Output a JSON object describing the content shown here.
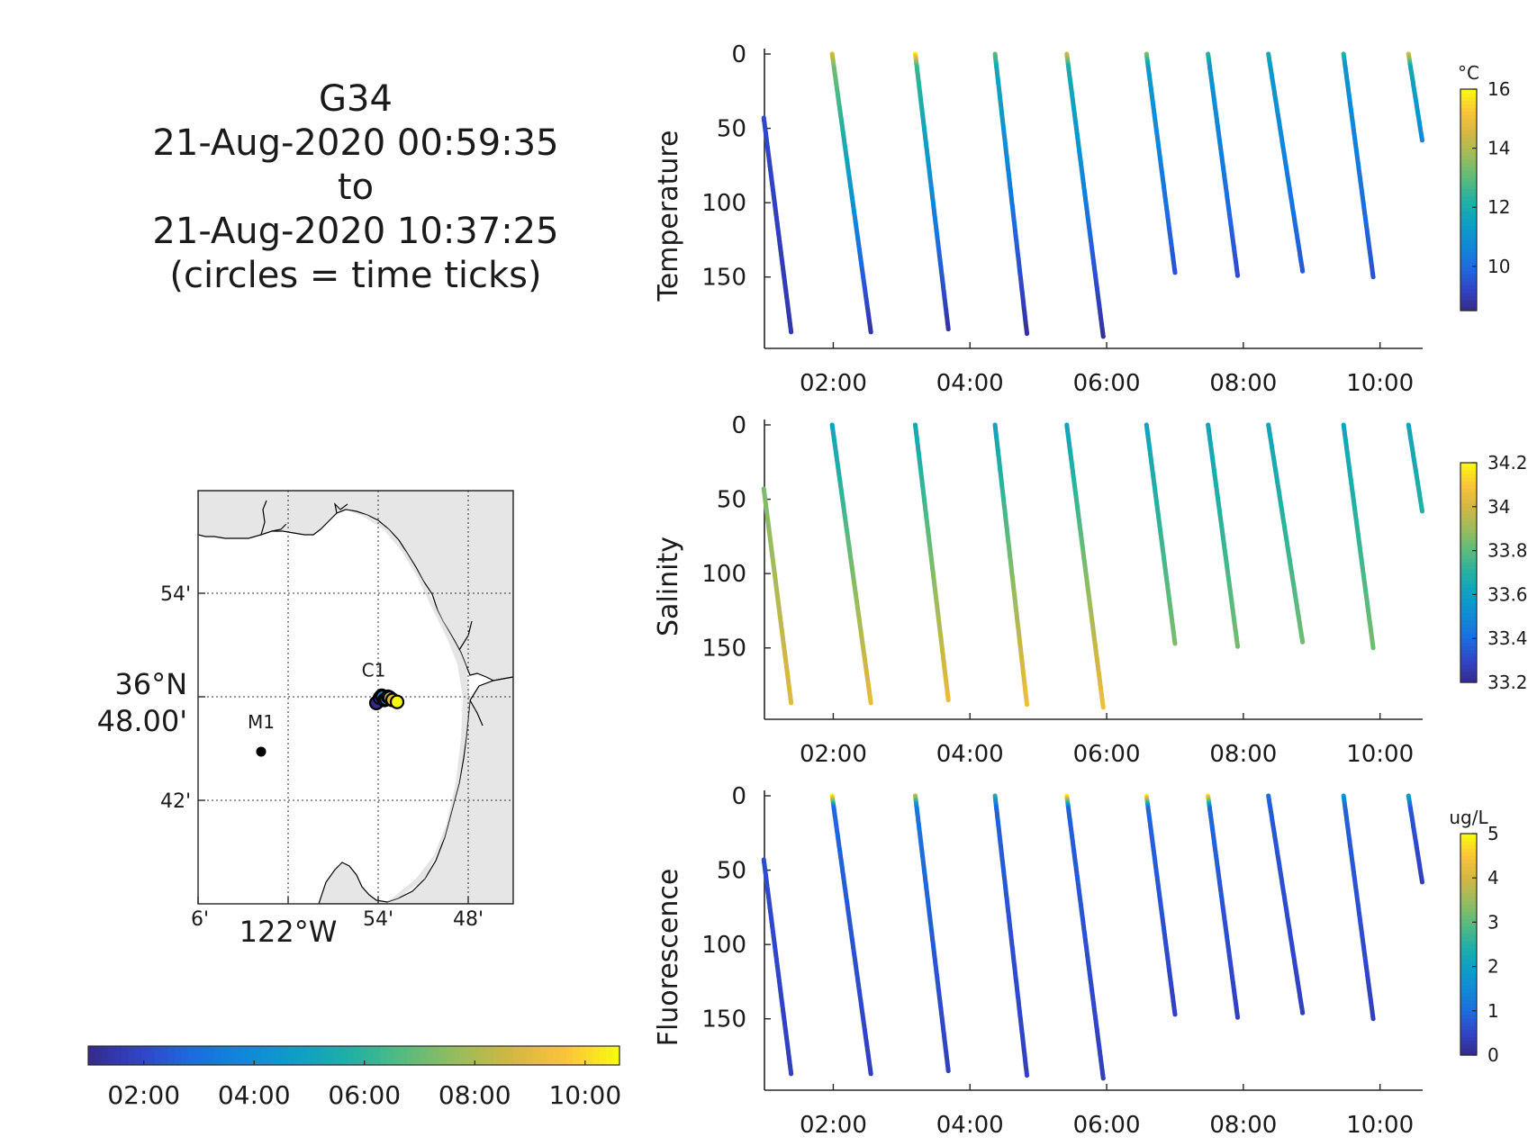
{
  "title_lines": [
    "G34",
    "21-Aug-2020 00:59:35",
    "to",
    "21-Aug-2020 10:37:25",
    "(circles = time ticks)"
  ],
  "colors": {
    "parula": [
      "#352a87",
      "#3145c9",
      "#1d6ce0",
      "#0f8ad8",
      "#0ea0c4",
      "#22b1a2",
      "#5cbb7c",
      "#9bbc5c",
      "#d3b742",
      "#fbc33a",
      "#f9fb0e"
    ],
    "land": "#e6e6e6",
    "axis": "#262626"
  },
  "chart_data": [
    {
      "type": "scatter",
      "panel": "temperature",
      "ylabel": "Temperature",
      "ylim": [
        0,
        198
      ],
      "y_reversed": true,
      "y_ticks": [
        0,
        50,
        100,
        150
      ],
      "xlim": [
        "00:59:35",
        "10:37:25"
      ],
      "x_ticks": [
        "02:00",
        "04:00",
        "06:00",
        "08:00",
        "10:00"
      ],
      "colorbar": {
        "unit": "°C",
        "range": [
          8.5,
          16
        ],
        "ticks": [
          10,
          12,
          14,
          16
        ]
      },
      "profiles": [
        {
          "t_start": "00:59",
          "t_end": "01:23",
          "z_start": 43,
          "z_end": 187,
          "v_start": 9.3,
          "v_end": 8.9
        },
        {
          "t_start": "01:59",
          "t_end": "02:33",
          "z_start": 0,
          "z_end": 187,
          "v_start": 13.5,
          "v_end": 8.8,
          "surface_v": 14.5
        },
        {
          "t_start": "03:12",
          "t_end": "03:41",
          "z_start": 0,
          "z_end": 185,
          "v_start": 12.8,
          "v_end": 8.8,
          "surface_v": 15.8
        },
        {
          "t_start": "04:22",
          "t_end": "04:50",
          "z_start": 0,
          "z_end": 188,
          "v_start": 12.0,
          "v_end": 8.7,
          "surface_v": 13.0
        },
        {
          "t_start": "05:25",
          "t_end": "05:57",
          "z_start": 0,
          "z_end": 190,
          "v_start": 12.2,
          "v_end": 8.7,
          "surface_v": 14.6
        },
        {
          "t_start": "06:35",
          "t_end": "07:00",
          "z_start": 0,
          "z_end": 147,
          "v_start": 11.5,
          "v_end": 9.5,
          "surface_v": 13.5
        },
        {
          "t_start": "07:29",
          "t_end": "07:55",
          "z_start": 0,
          "z_end": 149,
          "v_start": 11.3,
          "v_end": 9.4,
          "surface_v": 12.5
        },
        {
          "t_start": "08:22",
          "t_end": "08:52",
          "z_start": 0,
          "z_end": 146,
          "v_start": 11.4,
          "v_end": 9.6,
          "surface_v": 12.0
        },
        {
          "t_start": "09:28",
          "t_end": "09:54",
          "z_start": 0,
          "z_end": 150,
          "v_start": 11.2,
          "v_end": 9.5,
          "surface_v": 12.4
        },
        {
          "t_start": "10:25",
          "t_end": "10:37",
          "z_start": 0,
          "z_end": 58,
          "v_start": 12.0,
          "v_end": 10.8,
          "surface_v": 14.6
        }
      ]
    },
    {
      "type": "scatter",
      "panel": "salinity",
      "ylabel": "Salinity",
      "ylim": [
        0,
        198
      ],
      "y_reversed": true,
      "y_ticks": [
        0,
        50,
        100,
        150
      ],
      "xlim": [
        "00:59:35",
        "10:37:25"
      ],
      "x_ticks": [
        "02:00",
        "04:00",
        "06:00",
        "08:00",
        "10:00"
      ],
      "colorbar": {
        "unit": "",
        "range": [
          33.2,
          34.2
        ],
        "ticks": [
          "33.2",
          "33.4",
          "33.6",
          "33.8",
          "34",
          "34.2"
        ]
      },
      "profiles": [
        {
          "t_start": "00:59",
          "t_end": "01:23",
          "z_start": 43,
          "z_end": 187,
          "v_start": 33.85,
          "v_end": 34.03
        },
        {
          "t_start": "01:59",
          "t_end": "02:33",
          "z_start": 0,
          "z_end": 187,
          "v_start": 33.62,
          "v_end": 34.05
        },
        {
          "t_start": "03:12",
          "t_end": "03:41",
          "z_start": 0,
          "z_end": 185,
          "v_start": 33.64,
          "v_end": 34.05
        },
        {
          "t_start": "04:22",
          "t_end": "04:50",
          "z_start": 0,
          "z_end": 188,
          "v_start": 33.62,
          "v_end": 34.07
        },
        {
          "t_start": "05:25",
          "t_end": "05:57",
          "z_start": 0,
          "z_end": 190,
          "v_start": 33.62,
          "v_end": 34.07
        },
        {
          "t_start": "06:35",
          "t_end": "07:00",
          "z_start": 0,
          "z_end": 147,
          "v_start": 33.62,
          "v_end": 33.85
        },
        {
          "t_start": "07:29",
          "t_end": "07:55",
          "z_start": 0,
          "z_end": 149,
          "v_start": 33.62,
          "v_end": 33.84
        },
        {
          "t_start": "08:22",
          "t_end": "08:52",
          "z_start": 0,
          "z_end": 146,
          "v_start": 33.62,
          "v_end": 33.83
        },
        {
          "t_start": "09:28",
          "t_end": "09:54",
          "z_start": 0,
          "z_end": 150,
          "v_start": 33.62,
          "v_end": 33.84
        },
        {
          "t_start": "10:25",
          "t_end": "10:37",
          "z_start": 0,
          "z_end": 58,
          "v_start": 33.62,
          "v_end": 33.7
        }
      ]
    },
    {
      "type": "scatter",
      "panel": "fluorescence",
      "ylabel": "Fluorescence",
      "ylim": [
        0,
        198
      ],
      "y_reversed": true,
      "y_ticks": [
        0,
        50,
        100,
        150
      ],
      "xlim": [
        "00:59:35",
        "10:37:25"
      ],
      "x_ticks": [
        "02:00",
        "04:00",
        "06:00",
        "08:00",
        "10:00"
      ],
      "colorbar": {
        "unit": "ug/L",
        "range": [
          0,
          5
        ],
        "ticks": [
          0,
          1,
          2,
          3,
          4,
          5
        ]
      },
      "profiles": [
        {
          "t_start": "00:59",
          "t_end": "01:23",
          "z_start": 43,
          "z_end": 187,
          "v_start": 0.6,
          "v_end": 0.4
        },
        {
          "t_start": "01:59",
          "t_end": "02:33",
          "z_start": 0,
          "z_end": 187,
          "v_start": 1.0,
          "v_end": 0.4,
          "surface_v": 5.0
        },
        {
          "t_start": "03:12",
          "t_end": "03:41",
          "z_start": 0,
          "z_end": 185,
          "v_start": 1.2,
          "v_end": 0.4,
          "surface_v": 3.8
        },
        {
          "t_start": "04:22",
          "t_end": "04:50",
          "z_start": 0,
          "z_end": 188,
          "v_start": 0.9,
          "v_end": 0.4,
          "surface_v": 2.5
        },
        {
          "t_start": "05:25",
          "t_end": "05:57",
          "z_start": 0,
          "z_end": 190,
          "v_start": 0.9,
          "v_end": 0.4,
          "surface_v": 5.0
        },
        {
          "t_start": "06:35",
          "t_end": "07:00",
          "z_start": 0,
          "z_end": 147,
          "v_start": 1.0,
          "v_end": 0.4,
          "surface_v": 5.0
        },
        {
          "t_start": "07:29",
          "t_end": "07:55",
          "z_start": 0,
          "z_end": 149,
          "v_start": 1.0,
          "v_end": 0.4,
          "surface_v": 4.8
        },
        {
          "t_start": "08:22",
          "t_end": "08:52",
          "z_start": 0,
          "z_end": 146,
          "v_start": 0.8,
          "v_end": 0.4,
          "surface_v": 1.0
        },
        {
          "t_start": "09:28",
          "t_end": "09:54",
          "z_start": 0,
          "z_end": 150,
          "v_start": 0.9,
          "v_end": 0.4,
          "surface_v": 1.8
        },
        {
          "t_start": "10:25",
          "t_end": "10:37",
          "z_start": 0,
          "z_end": 58,
          "v_start": 0.8,
          "v_end": 0.4,
          "surface_v": 2.0
        }
      ]
    }
  ],
  "map": {
    "lat_labels": [
      "54'",
      "42'"
    ],
    "lat_center_label": [
      "36°N",
      "48.00'"
    ],
    "lon_labels": [
      "6'",
      "54'",
      "48'"
    ],
    "lon_center_label": "122°W",
    "stations": [
      {
        "name": "M1",
        "lon": -122.03,
        "lat": 36.747
      },
      {
        "name": "C1",
        "lon": -121.905,
        "lat": 36.797
      }
    ],
    "track": [
      {
        "time": "00:59",
        "lon": -121.902,
        "lat": 36.794
      },
      {
        "time": "02:00",
        "lon": -121.898,
        "lat": 36.799
      },
      {
        "time": "03:00",
        "lon": -121.896,
        "lat": 36.801
      },
      {
        "time": "04:00",
        "lon": -121.895,
        "lat": 36.8
      },
      {
        "time": "05:00",
        "lon": -121.893,
        "lat": 36.797
      },
      {
        "time": "06:00",
        "lon": -121.891,
        "lat": 36.798
      },
      {
        "time": "07:00",
        "lon": -121.889,
        "lat": 36.8
      },
      {
        "time": "08:00",
        "lon": -121.887,
        "lat": 36.799
      },
      {
        "time": "09:00",
        "lon": -121.884,
        "lat": 36.797
      },
      {
        "time": "10:37",
        "lon": -121.879,
        "lat": 36.795
      }
    ]
  },
  "time_colorbar": {
    "ticks": [
      "02:00",
      "04:00",
      "06:00",
      "08:00",
      "10:00"
    ]
  }
}
